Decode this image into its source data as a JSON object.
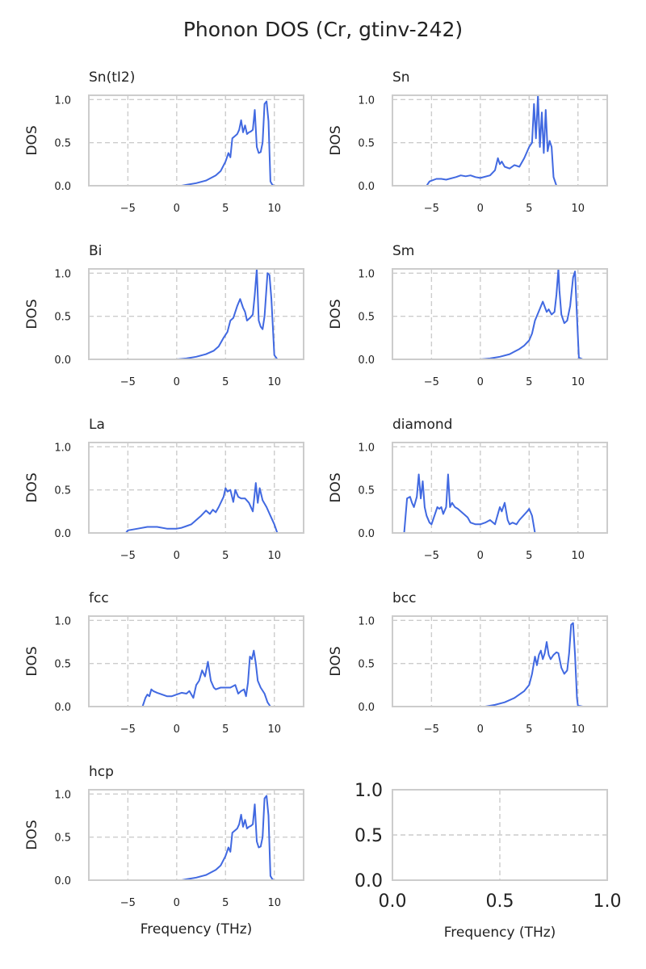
{
  "figure": {
    "title": "Phonon DOS (Cr, gtinv-242)"
  },
  "colors": {
    "line": "#4169e1",
    "grid": "#cccccc",
    "frame": "#cccccc",
    "text": "#222222"
  },
  "chart_data": [
    {
      "type": "line",
      "title": "Sn(tI2)",
      "ylabel": "DOS",
      "xlabel": "",
      "xlim": [
        -9,
        13
      ],
      "ylim": [
        0,
        1.05
      ],
      "xticks": [
        -5,
        0,
        5,
        10
      ],
      "yticks": [
        0.0,
        0.5,
        1.0
      ],
      "xtick_labels": [
        "−5",
        "0",
        "5",
        "10"
      ],
      "ytick_labels": [
        "0.0",
        "0.5",
        "1.0"
      ],
      "grid": true,
      "x": [
        0.5,
        1.0,
        2.0,
        3.0,
        4.0,
        4.5,
        5.0,
        5.3,
        5.5,
        5.7,
        6.0,
        6.2,
        6.4,
        6.6,
        6.8,
        7.0,
        7.2,
        7.4,
        7.6,
        7.8,
        8.0,
        8.2,
        8.4,
        8.6,
        8.8,
        9.0,
        9.2,
        9.4,
        9.6,
        9.8,
        10.0,
        10.2
      ],
      "y": [
        0.0,
        0.01,
        0.03,
        0.06,
        0.12,
        0.17,
        0.28,
        0.38,
        0.33,
        0.55,
        0.58,
        0.6,
        0.65,
        0.76,
        0.62,
        0.7,
        0.6,
        0.62,
        0.63,
        0.65,
        0.88,
        0.45,
        0.38,
        0.39,
        0.5,
        0.95,
        0.98,
        0.75,
        0.05,
        0.01,
        0.0,
        0.0
      ]
    },
    {
      "type": "line",
      "title": "Sn",
      "ylabel": "DOS",
      "xlabel": "",
      "xlim": [
        -9,
        13
      ],
      "ylim": [
        0,
        1.05
      ],
      "xticks": [
        -5,
        0,
        5,
        10
      ],
      "yticks": [
        0.0,
        0.5,
        1.0
      ],
      "xtick_labels": [
        "−5",
        "0",
        "5",
        "10"
      ],
      "ytick_labels": [
        "0.0",
        "0.5",
        "1.0"
      ],
      "grid": true,
      "x": [
        -7.0,
        -5.5,
        -5.2,
        -4.5,
        -4.0,
        -3.5,
        -2.5,
        -2.0,
        -1.5,
        -1.0,
        -0.5,
        0.0,
        1.0,
        1.5,
        1.8,
        2.0,
        2.2,
        2.5,
        3.0,
        3.5,
        4.0,
        4.5,
        5.0,
        5.3,
        5.5,
        5.7,
        5.9,
        6.1,
        6.3,
        6.5,
        6.7,
        6.9,
        7.1,
        7.3,
        7.5,
        7.8
      ],
      "y": [
        0.0,
        0.0,
        0.05,
        0.08,
        0.08,
        0.07,
        0.1,
        0.12,
        0.11,
        0.12,
        0.1,
        0.09,
        0.12,
        0.18,
        0.32,
        0.25,
        0.28,
        0.22,
        0.2,
        0.24,
        0.22,
        0.32,
        0.45,
        0.5,
        0.95,
        0.55,
        1.05,
        0.45,
        0.85,
        0.38,
        0.88,
        0.4,
        0.52,
        0.45,
        0.1,
        0.0
      ]
    },
    {
      "type": "line",
      "title": "Bi",
      "ylabel": "DOS",
      "xlabel": "",
      "xlim": [
        -9,
        13
      ],
      "ylim": [
        0,
        1.05
      ],
      "xticks": [
        -5,
        0,
        5,
        10
      ],
      "yticks": [
        0.0,
        0.5,
        1.0
      ],
      "xtick_labels": [
        "−5",
        "0",
        "5",
        "10"
      ],
      "ytick_labels": [
        "0.0",
        "0.5",
        "1.0"
      ],
      "grid": true,
      "x": [
        0.0,
        1.0,
        2.0,
        3.0,
        3.8,
        4.3,
        4.8,
        5.2,
        5.5,
        5.8,
        6.2,
        6.5,
        6.8,
        7.0,
        7.2,
        7.5,
        7.8,
        8.0,
        8.2,
        8.4,
        8.6,
        8.8,
        9.0,
        9.3,
        9.5,
        9.7,
        10.0,
        10.3,
        11.0
      ],
      "y": [
        0.0,
        0.01,
        0.03,
        0.06,
        0.1,
        0.15,
        0.25,
        0.32,
        0.45,
        0.48,
        0.62,
        0.7,
        0.6,
        0.55,
        0.45,
        0.48,
        0.52,
        0.75,
        1.05,
        0.45,
        0.38,
        0.35,
        0.5,
        1.0,
        0.98,
        0.7,
        0.05,
        0.0,
        0.0
      ]
    },
    {
      "type": "line",
      "title": "Sm",
      "ylabel": "DOS",
      "xlabel": "",
      "xlim": [
        -9,
        13
      ],
      "ylim": [
        0,
        1.05
      ],
      "xticks": [
        -5,
        0,
        5,
        10
      ],
      "yticks": [
        0.0,
        0.5,
        1.0
      ],
      "xtick_labels": [
        "−5",
        "0",
        "5",
        "10"
      ],
      "ytick_labels": [
        "0.0",
        "0.5",
        "1.0"
      ],
      "grid": true,
      "x": [
        0.0,
        1.0,
        2.0,
        3.0,
        4.0,
        4.5,
        5.0,
        5.3,
        5.6,
        6.0,
        6.4,
        6.8,
        7.0,
        7.3,
        7.6,
        7.8,
        8.0,
        8.1,
        8.3,
        8.6,
        8.9,
        9.2,
        9.5,
        9.7,
        9.9,
        10.1,
        10.5,
        11.0
      ],
      "y": [
        0.0,
        0.01,
        0.03,
        0.06,
        0.12,
        0.16,
        0.22,
        0.3,
        0.45,
        0.56,
        0.67,
        0.55,
        0.58,
        0.52,
        0.55,
        0.75,
        1.05,
        0.8,
        0.52,
        0.42,
        0.45,
        0.62,
        0.95,
        1.02,
        0.5,
        0.02,
        0.0,
        0.0
      ]
    },
    {
      "type": "line",
      "title": "La",
      "ylabel": "DOS",
      "xlabel": "",
      "xlim": [
        -9,
        13
      ],
      "ylim": [
        0,
        1.05
      ],
      "xticks": [
        -5,
        0,
        5,
        10
      ],
      "yticks": [
        0.0,
        0.5,
        1.0
      ],
      "xtick_labels": [
        "−5",
        "0",
        "5",
        "10"
      ],
      "ytick_labels": [
        "0.0",
        "0.5",
        "1.0"
      ],
      "grid": true,
      "x": [
        -6.5,
        -5.2,
        -5.0,
        -4.0,
        -3.0,
        -2.0,
        -1.0,
        0.0,
        0.5,
        1.0,
        1.5,
        2.0,
        2.5,
        3.0,
        3.4,
        3.7,
        4.0,
        4.3,
        4.8,
        5.0,
        5.2,
        5.5,
        5.8,
        6.0,
        6.3,
        6.6,
        7.0,
        7.4,
        7.8,
        8.1,
        8.3,
        8.5,
        8.8,
        9.2,
        9.6,
        10.0,
        10.3,
        10.6,
        12.0
      ],
      "y": [
        0.0,
        0.0,
        0.03,
        0.05,
        0.07,
        0.07,
        0.05,
        0.05,
        0.06,
        0.08,
        0.1,
        0.15,
        0.2,
        0.26,
        0.22,
        0.27,
        0.24,
        0.3,
        0.42,
        0.52,
        0.48,
        0.5,
        0.36,
        0.5,
        0.42,
        0.4,
        0.4,
        0.35,
        0.25,
        0.58,
        0.35,
        0.52,
        0.38,
        0.3,
        0.2,
        0.1,
        0.0,
        0.0,
        0.0
      ]
    },
    {
      "type": "line",
      "title": "diamond",
      "ylabel": "DOS",
      "xlabel": "",
      "xlim": [
        -9,
        13
      ],
      "ylim": [
        0,
        1.05
      ],
      "xticks": [
        -5,
        0,
        5,
        10
      ],
      "yticks": [
        0.0,
        0.5,
        1.0
      ],
      "xtick_labels": [
        "−5",
        "0",
        "5",
        "10"
      ],
      "ytick_labels": [
        "0.0",
        "0.5",
        "1.0"
      ],
      "grid": true,
      "x": [
        -9.0,
        -7.8,
        -7.5,
        -7.2,
        -7.0,
        -6.8,
        -6.5,
        -6.3,
        -6.1,
        -5.9,
        -5.7,
        -5.5,
        -5.2,
        -5.0,
        -4.7,
        -4.4,
        -4.2,
        -4.0,
        -3.8,
        -3.5,
        -3.3,
        -3.1,
        -2.9,
        -2.6,
        -2.3,
        -2.0,
        -1.7,
        -1.3,
        -1.0,
        -0.5,
        0.0,
        0.5,
        1.0,
        1.5,
        2.0,
        2.2,
        2.5,
        2.8,
        3.0,
        3.3,
        3.7,
        4.0,
        4.4,
        4.8,
        5.0,
        5.3,
        5.6,
        6.0,
        7.0
      ],
      "y": [
        0.0,
        0.0,
        0.4,
        0.42,
        0.35,
        0.3,
        0.42,
        0.68,
        0.4,
        0.6,
        0.3,
        0.2,
        0.12,
        0.1,
        0.2,
        0.3,
        0.28,
        0.3,
        0.22,
        0.3,
        0.68,
        0.3,
        0.35,
        0.3,
        0.28,
        0.25,
        0.22,
        0.18,
        0.12,
        0.1,
        0.1,
        0.12,
        0.15,
        0.1,
        0.3,
        0.25,
        0.35,
        0.15,
        0.1,
        0.12,
        0.1,
        0.15,
        0.2,
        0.25,
        0.28,
        0.2,
        0.0,
        0.0,
        0.0
      ]
    },
    {
      "type": "line",
      "title": "fcc",
      "ylabel": "DOS",
      "xlabel": "",
      "xlim": [
        -9,
        13
      ],
      "ylim": [
        0,
        1.05
      ],
      "xticks": [
        -5,
        0,
        5,
        10
      ],
      "yticks": [
        0.0,
        0.5,
        1.0
      ],
      "xtick_labels": [
        "−5",
        "0",
        "5",
        "10"
      ],
      "ytick_labels": [
        "0.0",
        "0.5",
        "1.0"
      ],
      "grid": true,
      "x": [
        -5.0,
        -3.5,
        -3.2,
        -3.0,
        -2.8,
        -2.6,
        -2.4,
        -2.0,
        -1.5,
        -1.0,
        -0.5,
        0.0,
        0.5,
        1.0,
        1.3,
        1.7,
        2.0,
        2.3,
        2.6,
        2.9,
        3.2,
        3.5,
        3.8,
        4.0,
        4.5,
        5.0,
        5.5,
        6.0,
        6.3,
        6.6,
        6.9,
        7.1,
        7.3,
        7.5,
        7.7,
        7.9,
        8.1,
        8.3,
        8.6,
        9.0,
        9.3,
        9.6,
        10.0
      ],
      "y": [
        0.0,
        0.0,
        0.1,
        0.14,
        0.12,
        0.2,
        0.18,
        0.16,
        0.14,
        0.12,
        0.12,
        0.14,
        0.16,
        0.15,
        0.18,
        0.1,
        0.25,
        0.3,
        0.42,
        0.35,
        0.52,
        0.3,
        0.22,
        0.2,
        0.22,
        0.22,
        0.22,
        0.25,
        0.15,
        0.18,
        0.2,
        0.12,
        0.28,
        0.58,
        0.55,
        0.65,
        0.5,
        0.3,
        0.22,
        0.15,
        0.05,
        0.0,
        0.0
      ]
    },
    {
      "type": "line",
      "title": "bcc",
      "ylabel": "DOS",
      "xlabel": "",
      "xlim": [
        -9,
        13
      ],
      "ylim": [
        0,
        1.05
      ],
      "xticks": [
        -5,
        0,
        5,
        10
      ],
      "yticks": [
        0.0,
        0.5,
        1.0
      ],
      "xtick_labels": [
        "−5",
        "0",
        "5",
        "10"
      ],
      "ytick_labels": [
        "0.0",
        "0.5",
        "1.0"
      ],
      "grid": true,
      "x": [
        0.5,
        1.5,
        2.5,
        3.5,
        4.5,
        5.0,
        5.3,
        5.6,
        5.8,
        6.0,
        6.2,
        6.4,
        6.6,
        6.8,
        7.0,
        7.2,
        7.5,
        7.8,
        8.0,
        8.3,
        8.6,
        8.9,
        9.1,
        9.3,
        9.5,
        9.7,
        9.9,
        10.0,
        10.5,
        11.0
      ],
      "y": [
        0.0,
        0.02,
        0.05,
        0.1,
        0.18,
        0.25,
        0.38,
        0.58,
        0.48,
        0.6,
        0.65,
        0.55,
        0.62,
        0.75,
        0.6,
        0.55,
        0.6,
        0.63,
        0.62,
        0.45,
        0.38,
        0.42,
        0.62,
        0.95,
        0.97,
        0.6,
        0.1,
        0.01,
        0.0,
        0.0
      ]
    },
    {
      "type": "line",
      "title": "hcp",
      "ylabel": "DOS",
      "xlabel": "Frequency (THz)",
      "xlim": [
        -9,
        13
      ],
      "ylim": [
        0,
        1.05
      ],
      "xticks": [
        -5,
        0,
        5,
        10
      ],
      "yticks": [
        0.0,
        0.5,
        1.0
      ],
      "xtick_labels": [
        "−5",
        "0",
        "5",
        "10"
      ],
      "ytick_labels": [
        "0.0",
        "0.5",
        "1.0"
      ],
      "grid": true,
      "x": [
        0.5,
        1.0,
        2.0,
        3.0,
        4.0,
        4.5,
        5.0,
        5.3,
        5.5,
        5.7,
        6.0,
        6.2,
        6.4,
        6.6,
        6.8,
        7.0,
        7.2,
        7.4,
        7.6,
        7.8,
        8.0,
        8.2,
        8.4,
        8.6,
        8.8,
        9.0,
        9.2,
        9.4,
        9.6,
        9.8,
        10.0,
        10.2
      ],
      "y": [
        0.0,
        0.01,
        0.03,
        0.06,
        0.12,
        0.17,
        0.28,
        0.38,
        0.33,
        0.55,
        0.58,
        0.6,
        0.65,
        0.76,
        0.62,
        0.7,
        0.6,
        0.62,
        0.63,
        0.65,
        0.88,
        0.45,
        0.38,
        0.39,
        0.5,
        0.95,
        0.98,
        0.75,
        0.05,
        0.01,
        0.0,
        0.0
      ]
    },
    {
      "type": "line",
      "title": "",
      "ylabel": "",
      "xlabel": "Frequency (THz)",
      "xlim": [
        0,
        1
      ],
      "ylim": [
        0,
        1
      ],
      "xticks": [
        0.0,
        0.5,
        1.0
      ],
      "yticks": [
        0.0,
        0.5,
        1.0
      ],
      "xtick_labels": [
        "0.0",
        "0.5",
        "1.0"
      ],
      "ytick_labels": [
        "0.0",
        "0.5",
        "1.0"
      ],
      "grid": true,
      "x": [],
      "y": []
    }
  ]
}
